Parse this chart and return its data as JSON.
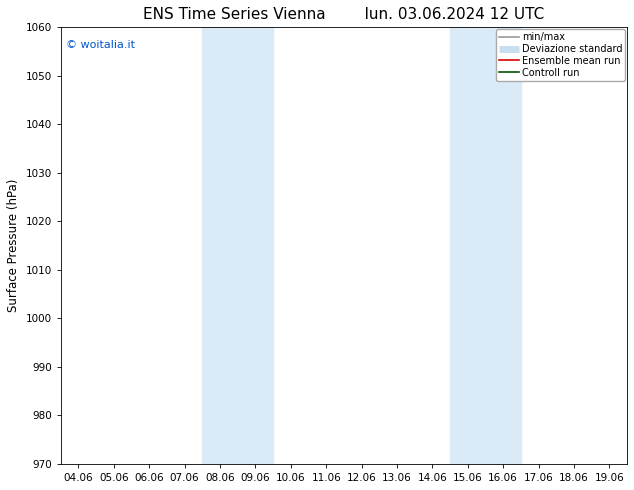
{
  "title_left": "ENS Time Series Vienna",
  "title_right": "lun. 03.06.2024 12 UTC",
  "ylabel": "Surface Pressure (hPa)",
  "ylim": [
    970,
    1060
  ],
  "yticks": [
    970,
    980,
    990,
    1000,
    1010,
    1020,
    1030,
    1040,
    1050,
    1060
  ],
  "xtick_labels": [
    "04.06",
    "05.06",
    "06.06",
    "07.06",
    "08.06",
    "09.06",
    "10.06",
    "11.06",
    "12.06",
    "13.06",
    "14.06",
    "15.06",
    "16.06",
    "17.06",
    "18.06",
    "19.06"
  ],
  "watermark": "© woitalia.it",
  "watermark_color": "#0055cc",
  "shaded_regions": [
    {
      "xstart": 4,
      "xend": 6
    },
    {
      "xstart": 11,
      "xend": 13
    }
  ],
  "shaded_color": "#daeaf7",
  "background_color": "#ffffff",
  "legend_items": [
    {
      "label": "min/max",
      "color": "#999999",
      "lw": 1.2
    },
    {
      "label": "Deviazione standard",
      "color": "#c8dff0",
      "lw": 6
    },
    {
      "label": "Ensemble mean run",
      "color": "#dd0000",
      "lw": 1.2
    },
    {
      "label": "Controll run",
      "color": "#005500",
      "lw": 1.2
    }
  ],
  "title_fontsize": 11,
  "tick_fontsize": 7.5,
  "ylabel_fontsize": 8.5
}
